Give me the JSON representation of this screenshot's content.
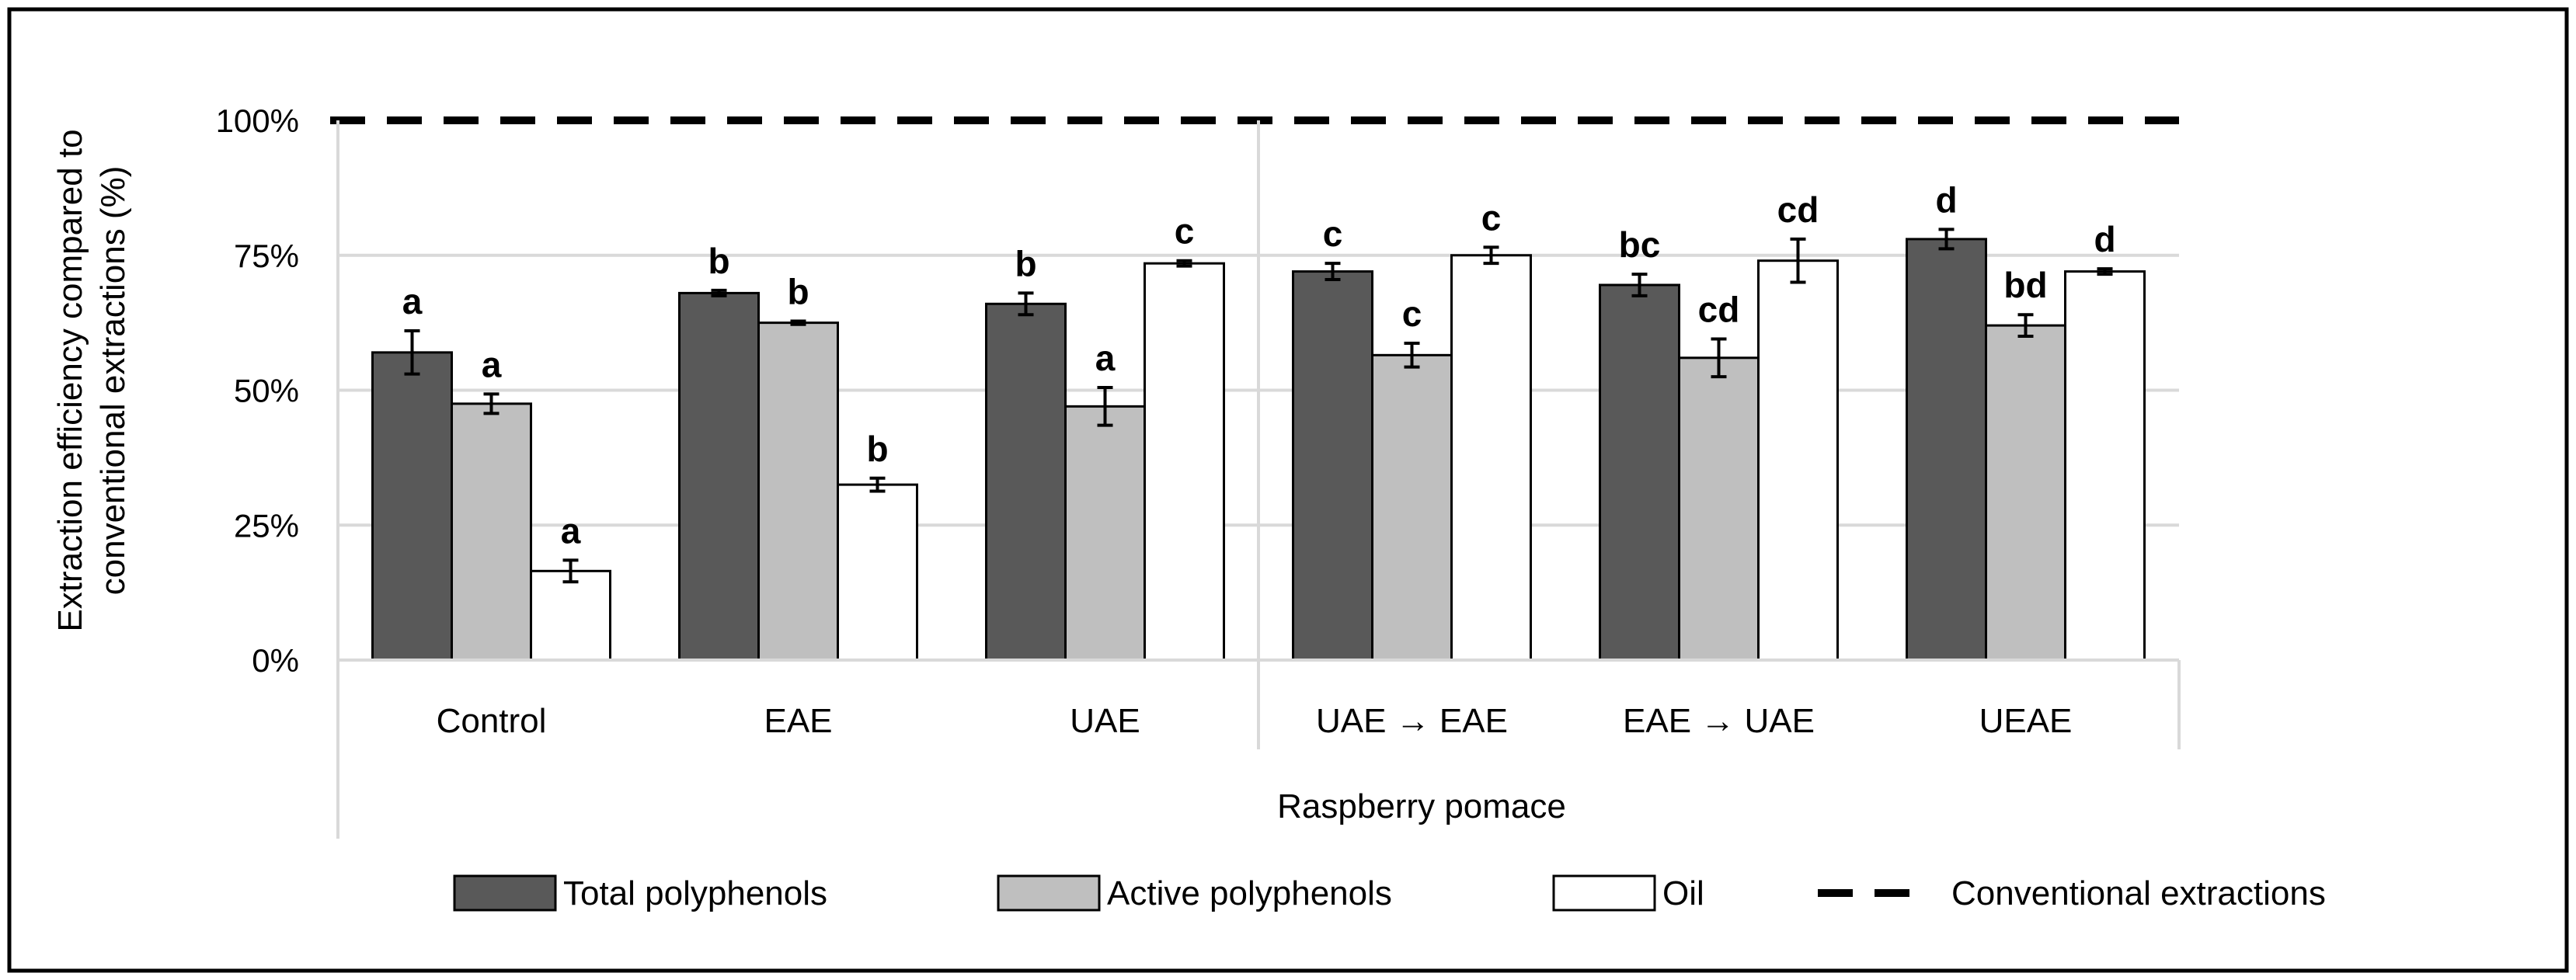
{
  "chart_data": {
    "type": "bar",
    "title": "",
    "xlabel": "Raspberry pomace",
    "ylabel_line1": "Extraction efficiency compared to",
    "ylabel_line2": "conventional extractions (%)",
    "ylim": [
      0,
      100
    ],
    "yticks": [
      {
        "value": 0,
        "label": "0%"
      },
      {
        "value": 25,
        "label": "25%"
      },
      {
        "value": 50,
        "label": "50%"
      },
      {
        "value": 75,
        "label": "75%"
      },
      {
        "value": 100,
        "label": "100%"
      }
    ],
    "categories": [
      "Control",
      "EAE",
      "UAE",
      "UAE → EAE",
      "EAE → UAE",
      "UEAE"
    ],
    "group_divider_after_index": 2,
    "reference_line": {
      "name": "Conventional extractions",
      "value": 100,
      "color": "#000000"
    },
    "series": [
      {
        "name": "Total polyphenols",
        "color": "#595959",
        "values": [
          57,
          68,
          66,
          72,
          69.5,
          78
        ],
        "errors": [
          4,
          0.5,
          2,
          1.5,
          2,
          1.8
        ],
        "letters": [
          "a",
          "b",
          "b",
          "c",
          "bc",
          "d"
        ]
      },
      {
        "name": "Active polyphenols",
        "color": "#bfbfbf",
        "values": [
          47.5,
          62.5,
          47,
          56.5,
          56,
          62
        ],
        "errors": [
          1.8,
          0.3,
          3.5,
          2.2,
          3.5,
          2
        ],
        "letters": [
          "a",
          "b",
          "a",
          "c",
          "cd",
          "bd"
        ]
      },
      {
        "name": "Oil",
        "color": "#ffffff",
        "values": [
          16.5,
          32.5,
          73.5,
          75,
          74,
          72
        ],
        "errors": [
          2,
          1.2,
          0.5,
          1.5,
          4,
          0.5
        ],
        "letters": [
          "a",
          "b",
          "c",
          "c",
          "cd",
          "d"
        ]
      }
    ]
  }
}
